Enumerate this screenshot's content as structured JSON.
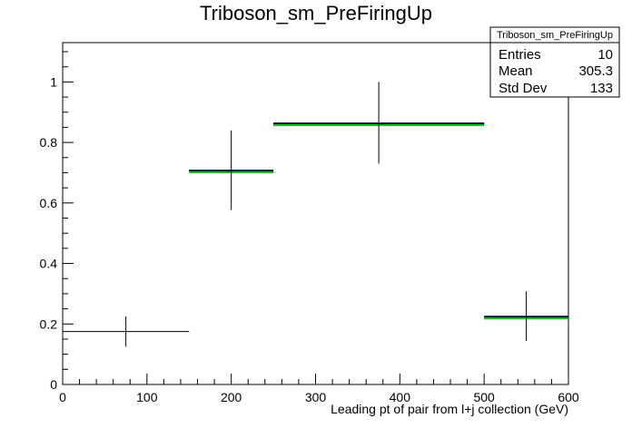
{
  "chart_data": {
    "type": "histogram",
    "title": "Triboson_sm_PreFiringUp",
    "xlabel": "Leading pt of pair from l+j collection (GeV)",
    "ylabel": "",
    "xlim": [
      0,
      600
    ],
    "ylim": [
      0,
      1.13
    ],
    "x_ticks": [
      "0",
      "100",
      "200",
      "300",
      "400",
      "500",
      "600"
    ],
    "y_ticks": [
      "0",
      "0.2",
      "0.4",
      "0.6",
      "0.8",
      "1"
    ],
    "grid": false,
    "bins": [
      {
        "x_low": 0,
        "x_high": 150,
        "value": 0.175,
        "err_low": 0.125,
        "err_high": 0.225
      },
      {
        "x_low": 150,
        "x_high": 250,
        "value": 0.707,
        "err_low": 0.577,
        "err_high": 0.84
      },
      {
        "x_low": 250,
        "x_high": 500,
        "value": 0.863,
        "err_low": 0.73,
        "err_high": 1.0
      },
      {
        "x_low": 500,
        "x_high": 600,
        "value": 0.224,
        "err_low": 0.144,
        "err_high": 0.308
      }
    ],
    "colors": {
      "nominal": "#000000",
      "up": "#00008b",
      "down": "#00cc00"
    },
    "stats_box": {
      "title": "Triboson_sm_PreFiringUp",
      "rows": [
        {
          "label": "Entries",
          "value": "10"
        },
        {
          "label": "Mean",
          "value": "305.3"
        },
        {
          "label": "Std Dev",
          "value": "133"
        }
      ]
    }
  }
}
